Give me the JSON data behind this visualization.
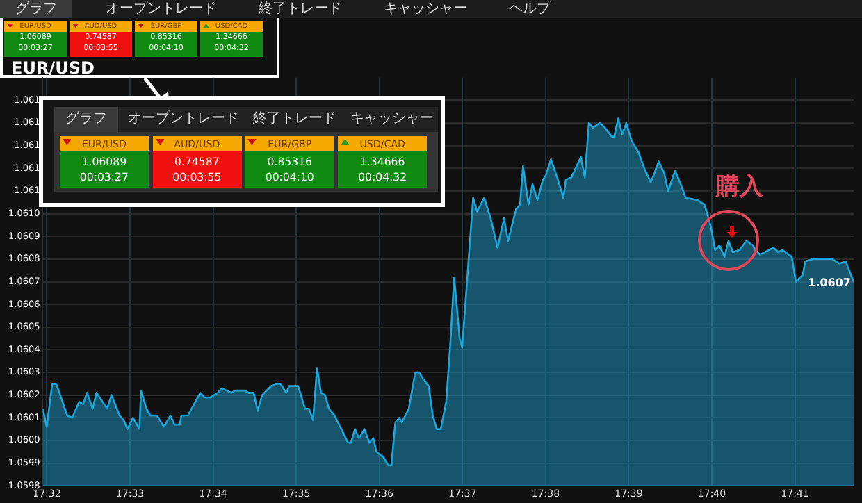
{
  "chart_data": {
    "type": "area",
    "title": "EUR/USD",
    "x": [
      17.5325,
      17.5333,
      17.5344,
      17.5352,
      17.536,
      17.5374,
      17.5384,
      17.5398,
      17.5406,
      17.5414,
      17.5425,
      17.5433,
      17.5454,
      17.5463,
      17.5479,
      17.5487,
      17.5495,
      17.5506,
      17.5519,
      17.5522,
      17.5533,
      17.5541,
      17.5554,
      17.5568,
      17.5581,
      17.5589,
      17.56,
      17.5603,
      17.5616,
      17.5641,
      17.5649,
      17.5662,
      17.5676,
      17.5684,
      17.5703,
      17.5711,
      17.573,
      17.5738,
      17.5748,
      17.5756,
      17.5765,
      17.5783,
      17.5792,
      17.5802,
      17.5813,
      17.5819,
      17.5837,
      17.5851,
      17.5859,
      17.5867,
      17.5875,
      17.5883,
      17.5891,
      17.5899,
      17.591,
      17.5926,
      17.5937,
      17.5943,
      17.5951,
      17.5959,
      17.597,
      17.598,
      17.5988,
      17.5994,
      17.6005,
      17.6007,
      17.6018,
      17.6024,
      17.6032,
      17.604,
      17.6045,
      17.6059,
      17.6072,
      17.608,
      17.6088,
      17.6099,
      17.6107,
      17.6115,
      17.6123,
      17.6134,
      17.6142,
      17.615,
      17.6161,
      17.6166,
      17.6175,
      17.6188,
      17.6196,
      17.621,
      17.6223,
      17.6237,
      17.625,
      17.6258,
      17.6274,
      17.6282,
      17.6288,
      17.6299,
      17.6307,
      17.6317,
      17.6328,
      17.6334,
      17.6344,
      17.6358,
      17.6369,
      17.6374,
      17.6385,
      17.6404,
      17.6412,
      17.642,
      17.6428,
      17.6442,
      17.6452,
      17.6466,
      17.6471,
      17.6479,
      17.6487,
      17.6495,
      17.6506,
      17.652,
      17.6531,
      17.6544,
      17.655,
      17.656,
      17.6571,
      17.6579,
      17.6593,
      17.6606,
      17.6614,
      17.6638,
      17.6652,
      17.6665,
      17.6673,
      17.6682,
      17.6692,
      17.67,
      17.6709,
      17.6722,
      17.6736,
      17.6749,
      17.6754,
      17.6763,
      17.679,
      17.68,
      17.6808,
      17.6827,
      17.6835,
      17.6849,
      17.6854,
      17.687,
      17.6895,
      17.6908,
      17.6922,
      17.6935,
      17.6951
    ],
    "series": [
      {
        "color": "#1ca8dc",
        "values": [
          1.06014,
          1.06006,
          1.06025,
          1.06025,
          1.0602,
          1.06011,
          1.0601,
          1.06017,
          1.06016,
          1.06021,
          1.06014,
          1.06021,
          1.06014,
          1.0602,
          1.06011,
          1.06009,
          1.06005,
          1.0601,
          1.06005,
          1.06022,
          1.06014,
          1.06011,
          1.06011,
          1.06006,
          1.06011,
          1.06007,
          1.06007,
          1.06011,
          1.06011,
          1.06021,
          1.06019,
          1.06019,
          1.06021,
          1.06023,
          1.06021,
          1.06022,
          1.06022,
          1.06021,
          1.06021,
          1.06013,
          1.0602,
          1.06024,
          1.06025,
          1.06025,
          1.06021,
          1.06024,
          1.06024,
          1.06014,
          1.06014,
          1.06009,
          1.06032,
          1.06021,
          1.0602,
          1.06014,
          1.06011,
          1.06004,
          1.05999,
          1.05999,
          1.06005,
          1.06001,
          1.06005,
          1.05999,
          1.06001,
          1.05995,
          1.05993,
          1.05993,
          1.05989,
          1.05989,
          1.06008,
          1.0601,
          1.06008,
          1.06014,
          1.0603,
          1.0603,
          1.06027,
          1.06024,
          1.06011,
          1.06005,
          1.06005,
          1.06017,
          1.06042,
          1.06072,
          1.06045,
          1.06041,
          1.06068,
          1.06107,
          1.06101,
          1.06107,
          1.06098,
          1.06085,
          1.06098,
          1.06088,
          1.06102,
          1.06104,
          1.06121,
          1.06104,
          1.06113,
          1.06106,
          1.06115,
          1.06117,
          1.06124,
          1.06115,
          1.06107,
          1.06115,
          1.06116,
          1.06125,
          1.06116,
          1.0614,
          1.06138,
          1.0614,
          1.06138,
          1.06134,
          1.06134,
          1.06142,
          1.06135,
          1.0614,
          1.06132,
          1.06127,
          1.0612,
          1.06114,
          1.06117,
          1.06123,
          1.06118,
          1.0611,
          1.06119,
          1.06112,
          1.06107,
          1.06106,
          1.06104,
          1.06094,
          1.06084,
          1.06086,
          1.06081,
          1.06088,
          1.06083,
          1.06084,
          1.06088,
          1.06086,
          1.06084,
          1.06082,
          1.06085,
          1.06083,
          1.06084,
          1.06081,
          1.0607,
          1.06073,
          1.06079,
          1.0608,
          1.0608,
          1.0608,
          1.06078,
          1.06079,
          1.0607
        ]
      }
    ],
    "xlim": [
      17.5325,
      17.6951
    ],
    "xticks": [
      {
        "value": 17.533333,
        "label": "17:32"
      },
      {
        "value": 17.55,
        "label": "17:33"
      },
      {
        "value": 17.566667,
        "label": "17:34"
      },
      {
        "value": 17.583333,
        "label": "17:35"
      },
      {
        "value": 17.6,
        "label": "17:36"
      },
      {
        "value": 17.616667,
        "label": "17:37"
      },
      {
        "value": 17.633333,
        "label": "17:38"
      },
      {
        "value": 17.65,
        "label": "17:39"
      },
      {
        "value": 17.666667,
        "label": "17:40"
      },
      {
        "value": 17.683333,
        "label": "17:41"
      }
    ],
    "ylim": [
      1.0598,
      1.0616
    ],
    "yticks": [
      1.0598,
      1.0599,
      {
        "value": 1.06,
        "label": "1.0600"
      },
      1.0601,
      1.0602,
      1.0603,
      1.0604,
      1.0605,
      1.0606,
      1.0607,
      1.0608,
      1.0609,
      {
        "value": 1.061,
        "label": "1.0610"
      },
      {
        "value": 1.0611,
        "label": "1.061"
      },
      {
        "value": 1.0612,
        "label": "1.061"
      },
      {
        "value": 1.0613,
        "label": "1.061"
      },
      {
        "value": 1.0614,
        "label": "1.061"
      },
      {
        "value": 1.0615,
        "label": "1.061"
      }
    ],
    "grid": true,
    "annotations": [
      "グラフ",
      "オープントレード",
      "終了トレード",
      "キャッシャー",
      "ヘルプ",
      "EUR/USD",
      "1.06089",
      "00:03:27",
      "AUD/USD",
      "0.74587",
      "00:03:55",
      "EUR/GBP",
      "0.85316",
      "00:04:10",
      "USD/CAD",
      "1.34666",
      "00:04:32",
      {
        "text": "購入",
        "x": 17.67,
        "y": 1.06088
      },
      {
        "text": "1.0607",
        "x": 17.6951,
        "y": 1.0607
      }
    ]
  }
}
